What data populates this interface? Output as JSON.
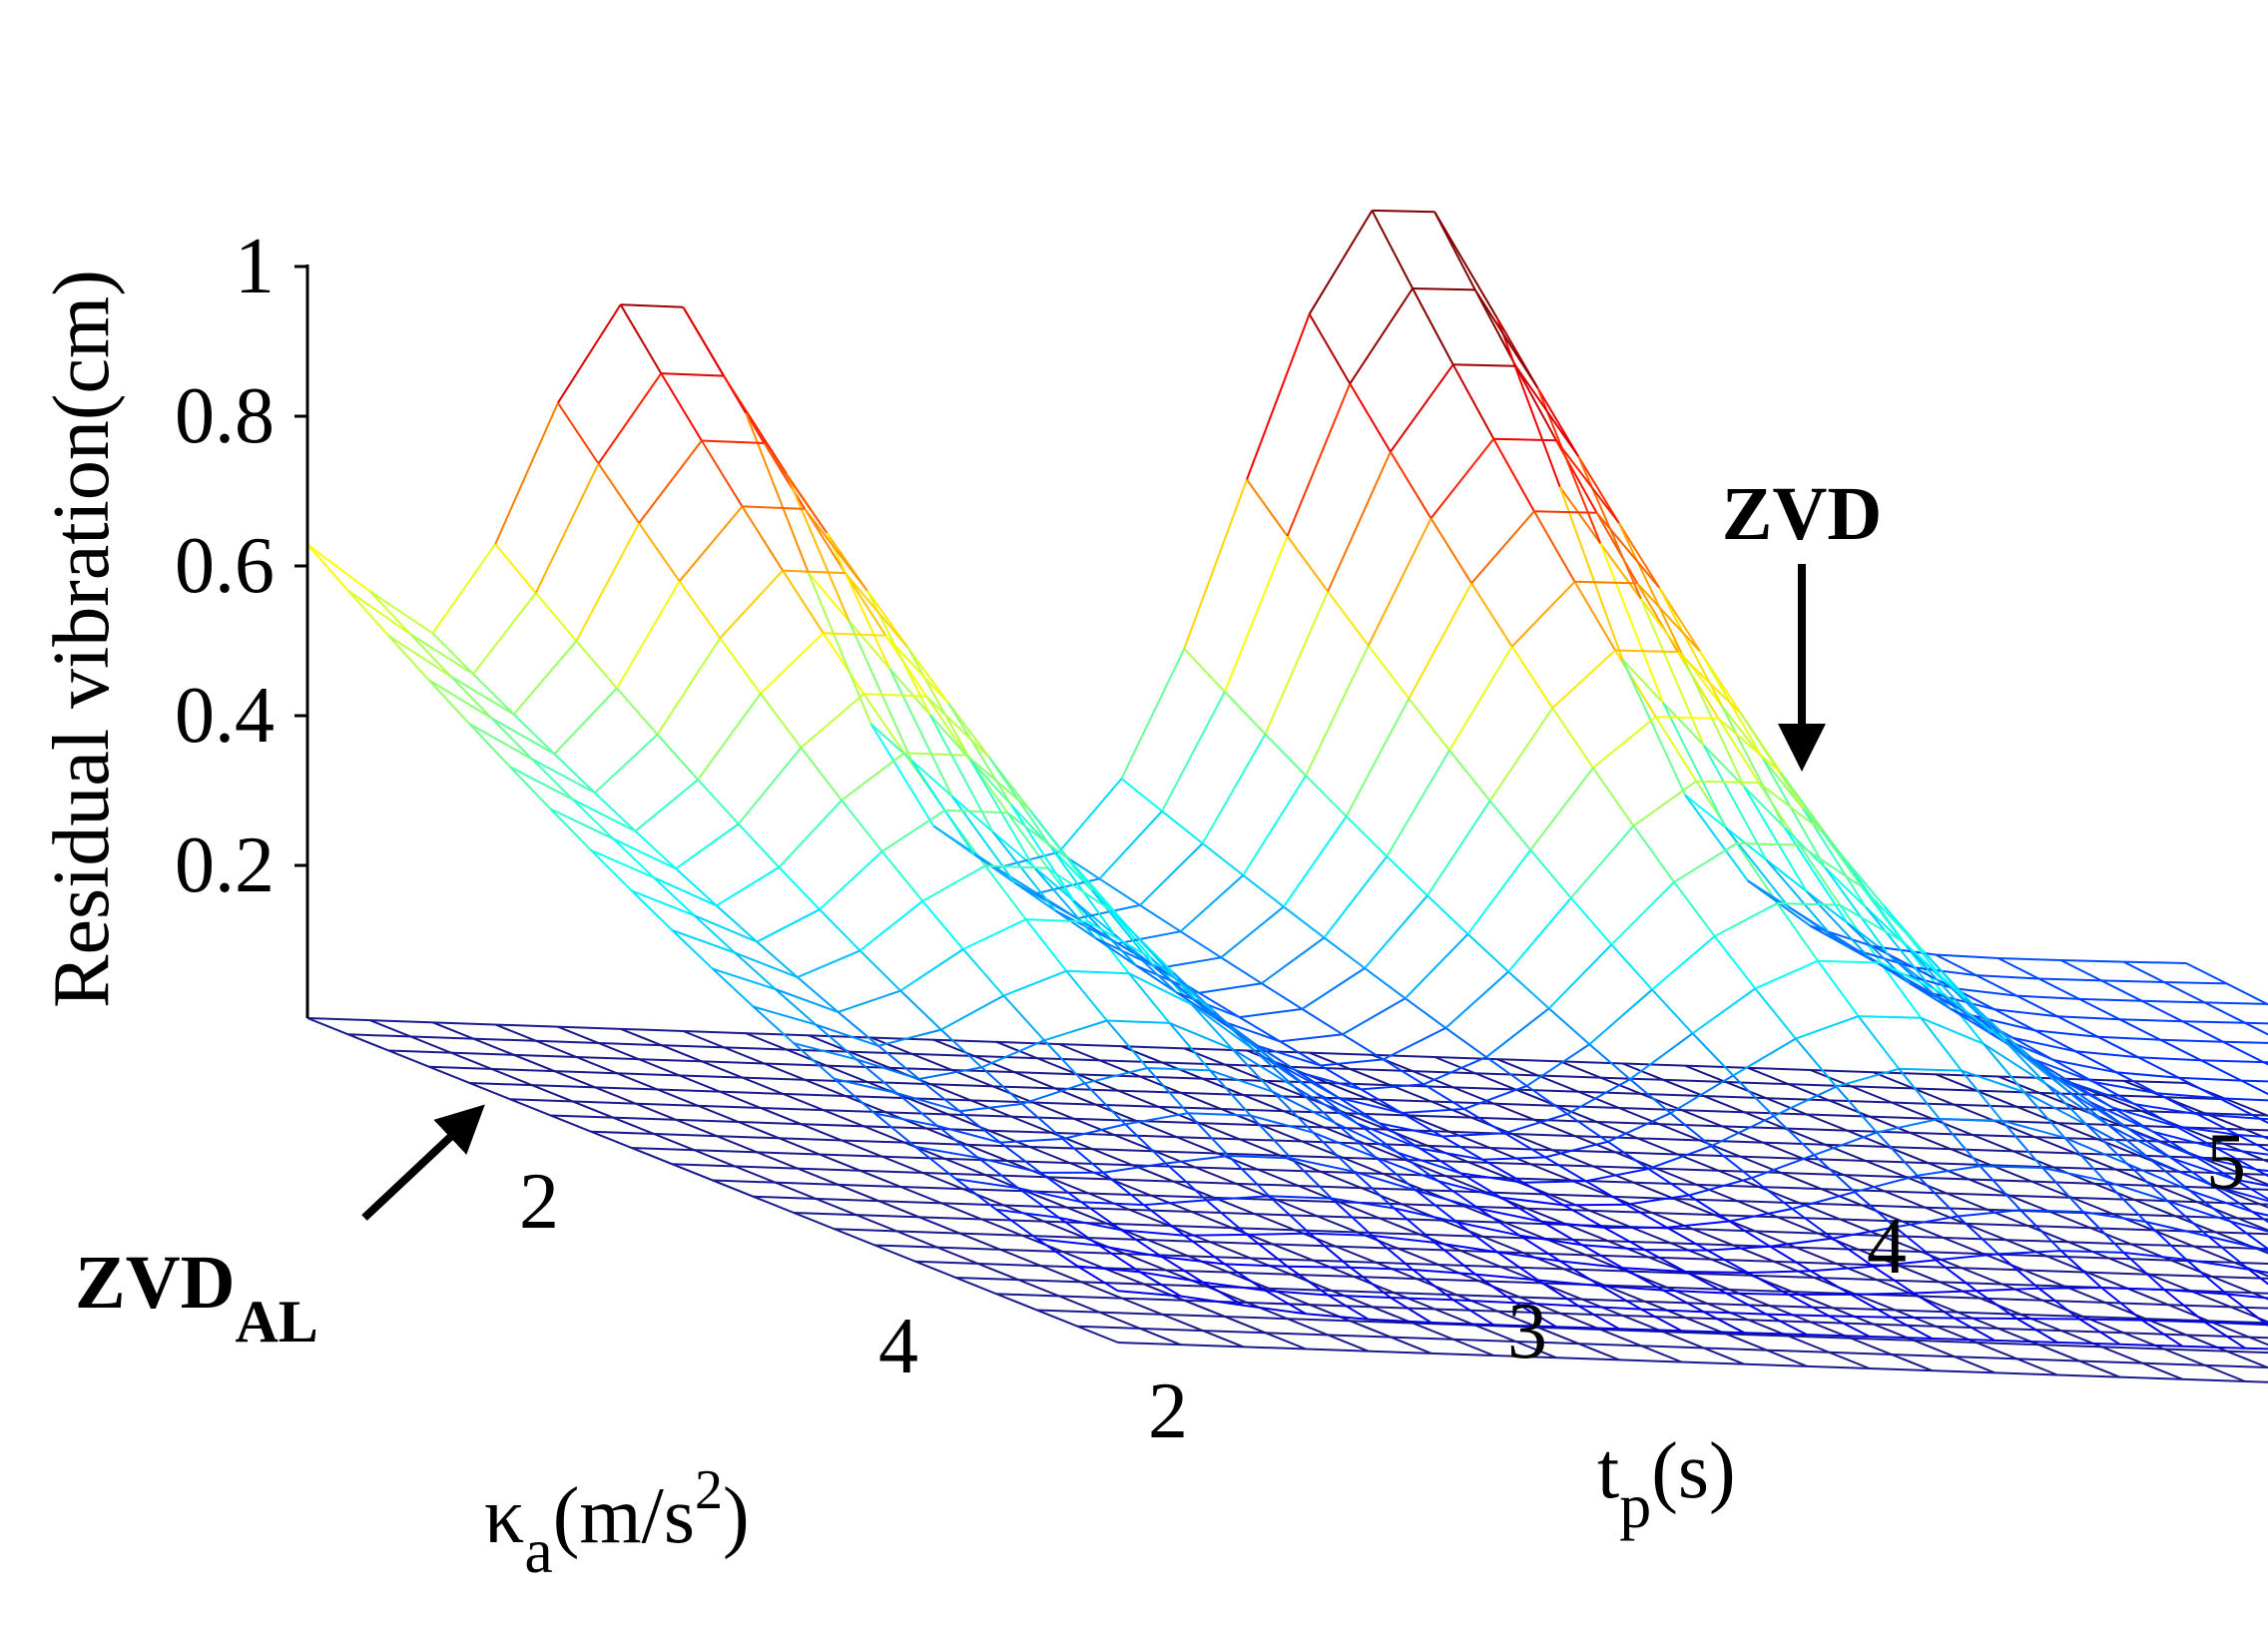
{
  "chart_data": {
    "type": "surface-3d",
    "title": "",
    "zlabel": "Residual vibration(cm)",
    "xlabel": {
      "main": "t",
      "sub": "p",
      "rest": "(s)"
    },
    "ylabel": {
      "main": "κ",
      "sub": "a",
      "rest": "(m/s",
      "sup": "2",
      "close": ")"
    },
    "x_range": [
      2,
      5
    ],
    "y_range": [
      1,
      5
    ],
    "z_range": [
      0,
      1
    ],
    "x_ticks": [
      "2",
      "3",
      "4",
      "5"
    ],
    "y_ticks": [
      "2",
      "4"
    ],
    "z_ticks": [
      "0.2",
      "0.4",
      "0.6",
      "0.8",
      "1"
    ],
    "grid": {
      "x_lines": 31,
      "y_lines": 21
    },
    "surfaces": [
      {
        "name": "ZVD",
        "description_peaks": {
          "x": [
            2.55,
            3.75
          ],
          "z_max": [
            0.85,
            1.0
          ]
        },
        "z_at_low_kappa_t2": 0.55,
        "z_at_t5": 0.2
      },
      {
        "name": "ZVD AL",
        "z": 0.0
      }
    ],
    "annotations": [
      {
        "label": "ZVD",
        "target": {
          "t": 4.3,
          "kappa": 1.0
        }
      },
      {
        "label": "ZVD",
        "sub": "AL",
        "target": "flat surface"
      }
    ],
    "colormap": "jet"
  }
}
